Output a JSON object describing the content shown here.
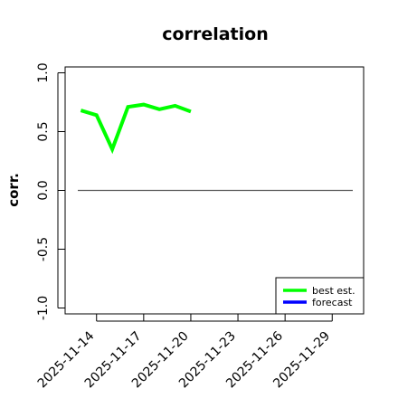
{
  "chart_data": {
    "type": "line",
    "title": "correlation",
    "xlabel": "",
    "ylabel": "corr.",
    "ylim": [
      -1.05,
      1.05
    ],
    "yticks": [
      -1.0,
      -0.5,
      0.0,
      0.5,
      1.0
    ],
    "ytick_labels": [
      "-1.0",
      "-0.5",
      "0.0",
      "0.5",
      "1.0"
    ],
    "x_range": [
      "2025-11-12",
      "2025-11-31"
    ],
    "xtick_labels": [
      "2025-11-14",
      "2025-11-17",
      "2025-11-20",
      "2025-11-23",
      "2025-11-26",
      "2025-11-29"
    ],
    "xtick_colors": [
      "#000000",
      "#000000",
      "#228B22",
      "#000000",
      "#000000",
      "#000000"
    ],
    "reference_line": {
      "y": 0.0,
      "color": "#555555"
    },
    "series": [
      {
        "name": "best est.",
        "color": "#00ff00",
        "x": [
          "2025-11-13",
          "2025-11-14",
          "2025-11-15",
          "2025-11-16",
          "2025-11-17",
          "2025-11-18",
          "2025-11-19",
          "2025-11-20"
        ],
        "values": [
          0.68,
          0.64,
          0.35,
          0.71,
          0.73,
          0.69,
          0.72,
          0.67
        ]
      },
      {
        "name": "forecast",
        "color": "#0000ff",
        "x": [],
        "values": []
      }
    ],
    "legend": "bottom-right",
    "grid": false
  }
}
